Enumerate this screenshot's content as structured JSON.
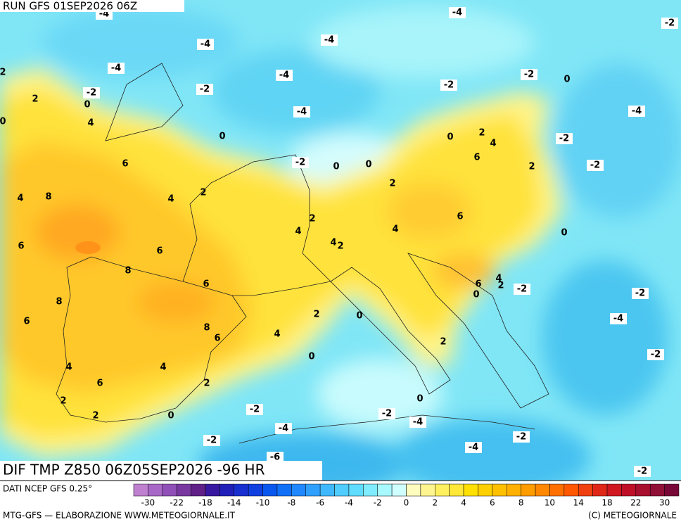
{
  "header": {
    "run": "RUN GFS 01SEP2026 06Z",
    "title": "DIF TMP Z850 06Z05SEP2026 -96 HR"
  },
  "map": {
    "contour_labels": [
      -4,
      -4,
      -2,
      -4,
      -4,
      -4,
      -4,
      -2,
      0,
      2,
      -2,
      -2,
      -2,
      2,
      0,
      -4,
      -4,
      4,
      0,
      0,
      2,
      4,
      -2,
      0,
      6,
      -2,
      0,
      0,
      6,
      2,
      -2,
      2,
      4,
      8,
      4,
      2,
      2,
      4,
      4,
      6,
      0,
      4,
      2,
      6,
      6,
      8,
      6,
      4,
      2,
      6,
      0,
      -2,
      -2,
      8,
      2,
      0,
      -4,
      6,
      8,
      6,
      4,
      2,
      0,
      -2,
      4,
      4,
      6,
      2,
      0,
      2,
      -2,
      2,
      0,
      -2,
      -4,
      -4,
      -2,
      -4,
      -2,
      -6,
      -2
    ]
  },
  "colorbar": {
    "ticks": [
      -30,
      -22,
      -18,
      -14,
      -10,
      -8,
      -6,
      -4,
      -2,
      0,
      2,
      4,
      6,
      8,
      10,
      14,
      18,
      22,
      30
    ],
    "colors": [
      "#c080d0",
      "#a868c8",
      "#9050b8",
      "#7838a0",
      "#602088",
      "#3818a0",
      "#2020b8",
      "#1830d0",
      "#1040e0",
      "#0858f0",
      "#1070f8",
      "#2088ff",
      "#30a0ff",
      "#40b8ff",
      "#50ccff",
      "#60dcff",
      "#80ecff",
      "#a8f8ff",
      "#d0ffff",
      "#fffcc0",
      "#fff590",
      "#fff060",
      "#ffe838",
      "#ffe000",
      "#ffd000",
      "#ffc000",
      "#ffb000",
      "#ff9c00",
      "#ff8800",
      "#ff7000",
      "#ff5800",
      "#f04010",
      "#e02818",
      "#d01820",
      "#c01028",
      "#a81030",
      "#901038",
      "#780838"
    ]
  },
  "footer": {
    "source": "DATI NCEP GFS 0.25°",
    "credit": "MTG-GFS — ELABORAZIONE WWW.METEOGIORNALE.IT",
    "copyright": "(C) METEOGIORNALE"
  }
}
